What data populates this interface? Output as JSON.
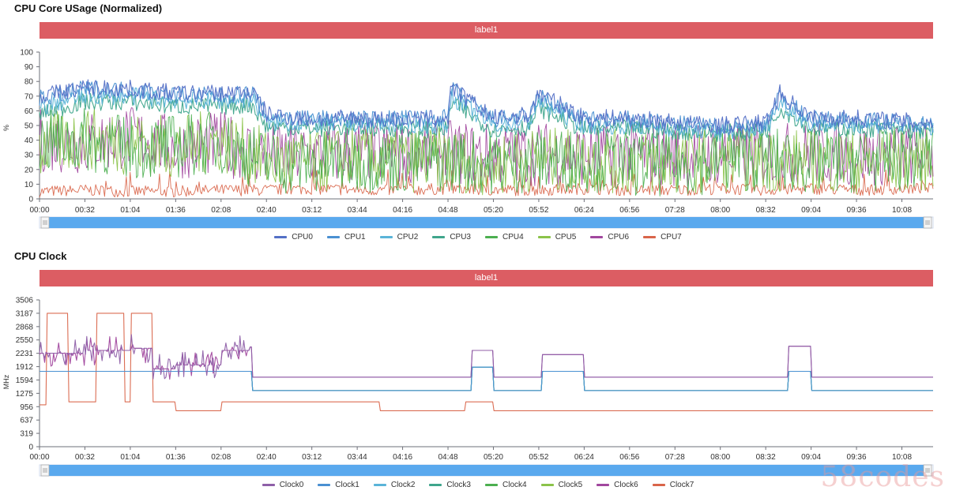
{
  "charts": [
    {
      "title": "CPU Core USage (Normalized)",
      "label_bar": "label1",
      "unit": "%",
      "y_ticks": [
        "0",
        "10",
        "20",
        "30",
        "40",
        "50",
        "60",
        "70",
        "80",
        "90",
        "100"
      ],
      "x_ticks": [
        "00:00",
        "00:32",
        "01:04",
        "01:36",
        "02:08",
        "02:40",
        "03:12",
        "03:44",
        "04:16",
        "04:48",
        "05:20",
        "05:52",
        "06:24",
        "06:56",
        "07:28",
        "08:00",
        "08:32",
        "09:04",
        "09:36",
        "10:08"
      ],
      "legend": [
        {
          "name": "CPU0",
          "color": "#5470c6"
        },
        {
          "name": "CPU1",
          "color": "#4a90d2"
        },
        {
          "name": "CPU2",
          "color": "#5ab4d8"
        },
        {
          "name": "CPU3",
          "color": "#3fa58c"
        },
        {
          "name": "CPU4",
          "color": "#4caf50"
        },
        {
          "name": "CPU5",
          "color": "#8bc34a"
        },
        {
          "name": "CPU6",
          "color": "#a1479e"
        },
        {
          "name": "CPU7",
          "color": "#d9654a"
        }
      ]
    },
    {
      "title": "CPU Clock",
      "label_bar": "label1",
      "unit": "MHz",
      "y_ticks": [
        "0",
        "319",
        "637",
        "956",
        "1275",
        "1594",
        "1912",
        "2231",
        "2550",
        "2868",
        "3187",
        "3506"
      ],
      "x_ticks": [
        "00:00",
        "00:32",
        "01:04",
        "01:36",
        "02:08",
        "02:40",
        "03:12",
        "03:44",
        "04:16",
        "04:48",
        "05:20",
        "05:52",
        "06:24",
        "06:56",
        "07:28",
        "08:00",
        "08:32",
        "09:04",
        "09:36",
        "10:08"
      ],
      "legend": [
        {
          "name": "Clock0",
          "color": "#8e5fa8"
        },
        {
          "name": "Clock1",
          "color": "#4a90d2"
        },
        {
          "name": "Clock2",
          "color": "#5ab4d8"
        },
        {
          "name": "Clock3",
          "color": "#3fa58c"
        },
        {
          "name": "Clock4",
          "color": "#4caf50"
        },
        {
          "name": "Clock5",
          "color": "#8bc34a"
        },
        {
          "name": "Clock6",
          "color": "#a1479e"
        },
        {
          "name": "Clock7",
          "color": "#d9654a"
        }
      ]
    }
  ],
  "watermark": "58codes",
  "chart_data": [
    {
      "type": "line",
      "title": "CPU Core USage (Normalized)",
      "ylabel": "%",
      "ylim": [
        0,
        100
      ],
      "x_range": [
        "00:00",
        "10:30"
      ],
      "grid": false,
      "legend_position": "bottom",
      "series": [
        {
          "name": "CPU0",
          "color": "#5470c6",
          "x": [
            "00:00",
            "00:32",
            "01:04",
            "01:36",
            "02:08",
            "02:30",
            "02:40",
            "03:12",
            "03:44",
            "04:16",
            "04:48",
            "04:50",
            "05:20",
            "05:45",
            "05:52",
            "06:24",
            "06:56",
            "07:28",
            "08:00",
            "08:32",
            "08:42",
            "09:04",
            "09:36",
            "10:08",
            "10:30"
          ],
          "values": [
            70,
            76,
            75,
            72,
            72,
            73,
            58,
            54,
            55,
            54,
            55,
            76,
            55,
            57,
            72,
            55,
            55,
            52,
            50,
            52,
            72,
            55,
            55,
            53,
            52
          ]
        },
        {
          "name": "CPU1",
          "color": "#4a90d2",
          "x": [
            "00:00",
            "00:32",
            "01:04",
            "01:36",
            "02:08",
            "02:30",
            "02:40",
            "03:12",
            "03:44",
            "04:16",
            "04:48",
            "04:50",
            "05:20",
            "05:45",
            "05:52",
            "06:24",
            "06:56",
            "07:28",
            "08:00",
            "08:32",
            "08:42",
            "09:04",
            "09:36",
            "10:08",
            "10:30"
          ],
          "values": [
            68,
            75,
            74,
            71,
            70,
            72,
            56,
            55,
            54,
            55,
            55,
            75,
            54,
            56,
            70,
            54,
            54,
            51,
            49,
            51,
            70,
            54,
            54,
            52,
            51
          ]
        },
        {
          "name": "CPU2",
          "color": "#5ab4d8",
          "x": [
            "00:00",
            "00:32",
            "01:04",
            "01:36",
            "02:08",
            "02:30",
            "02:40",
            "03:12",
            "03:44",
            "04:16",
            "04:48",
            "04:50",
            "05:20",
            "05:45",
            "05:52",
            "06:24",
            "06:56",
            "07:28",
            "08:00",
            "08:32",
            "08:42",
            "09:04",
            "09:36",
            "10:08",
            "10:30"
          ],
          "values": [
            62,
            70,
            70,
            67,
            67,
            68,
            52,
            51,
            51,
            51,
            50,
            70,
            50,
            52,
            66,
            50,
            50,
            48,
            46,
            48,
            66,
            51,
            51,
            50,
            49
          ]
        },
        {
          "name": "CPU3",
          "color": "#3fa58c",
          "x": [
            "00:00",
            "00:32",
            "01:04",
            "01:36",
            "02:08",
            "02:30",
            "02:40",
            "03:12",
            "03:44",
            "04:16",
            "04:48",
            "04:50",
            "05:20",
            "05:45",
            "05:52",
            "06:24",
            "06:56",
            "07:28",
            "08:00",
            "08:32",
            "08:42",
            "09:04",
            "09:36",
            "10:08",
            "10:30"
          ],
          "values": [
            58,
            66,
            66,
            63,
            63,
            64,
            49,
            48,
            49,
            48,
            47,
            66,
            47,
            49,
            62,
            47,
            48,
            46,
            45,
            46,
            62,
            48,
            48,
            47,
            46
          ]
        },
        {
          "name": "CPU4",
          "color": "#4caf50",
          "x": [
            "00:00",
            "00:32",
            "01:04",
            "01:36",
            "02:08",
            "02:40",
            "03:12",
            "03:44",
            "04:16",
            "04:48",
            "05:20",
            "05:52",
            "06:24",
            "06:56",
            "07:28",
            "08:00",
            "08:32",
            "09:04",
            "09:36",
            "10:08",
            "10:30"
          ],
          "values": [
            38,
            40,
            35,
            36,
            39,
            25,
            24,
            27,
            25,
            26,
            25,
            26,
            27,
            24,
            23,
            26,
            27,
            25,
            26,
            27,
            30
          ]
        },
        {
          "name": "CPU5",
          "color": "#8bc34a",
          "x": [
            "00:00",
            "00:32",
            "01:04",
            "01:36",
            "02:08",
            "02:40",
            "03:12",
            "03:44",
            "04:16",
            "04:48",
            "05:20",
            "05:52",
            "06:24",
            "06:56",
            "07:28",
            "08:00",
            "08:32",
            "09:04",
            "09:36",
            "10:08",
            "10:30"
          ],
          "values": [
            35,
            42,
            38,
            35,
            40,
            26,
            25,
            28,
            26,
            27,
            24,
            27,
            26,
            25,
            24,
            27,
            26,
            26,
            25,
            26,
            28
          ]
        },
        {
          "name": "CPU6",
          "color": "#a1479e",
          "x": [
            "00:00",
            "00:32",
            "01:04",
            "01:36",
            "02:08",
            "02:40",
            "03:12",
            "03:44",
            "04:16",
            "04:48",
            "05:20",
            "05:52",
            "06:24",
            "06:56",
            "07:28",
            "08:00",
            "08:32",
            "09:04",
            "09:36",
            "10:08",
            "10:30"
          ],
          "values": [
            40,
            38,
            42,
            35,
            38,
            30,
            30,
            32,
            31,
            32,
            30,
            31,
            30,
            31,
            30,
            31,
            30,
            31,
            30,
            31,
            30
          ]
        },
        {
          "name": "CPU7",
          "color": "#d9654a",
          "x": [
            "00:00",
            "00:32",
            "01:04",
            "01:36",
            "02:08",
            "02:40",
            "03:12",
            "03:44",
            "04:16",
            "04:48",
            "05:20",
            "05:52",
            "06:24",
            "06:56",
            "07:28",
            "08:00",
            "08:32",
            "09:04",
            "09:36",
            "10:08",
            "10:30"
          ],
          "values": [
            5,
            6,
            5,
            5,
            6,
            6,
            7,
            6,
            6,
            7,
            6,
            6,
            7,
            6,
            6,
            7,
            6,
            7,
            6,
            7,
            7
          ]
        }
      ]
    },
    {
      "type": "line",
      "title": "CPU Clock",
      "ylabel": "MHz",
      "ylim": [
        0,
        3506
      ],
      "x_range": [
        "00:00",
        "10:30"
      ],
      "grid": false,
      "legend_position": "bottom",
      "series": [
        {
          "name": "Clock0",
          "color": "#8e5fa8",
          "x": [
            "00:00",
            "00:32",
            "01:04",
            "01:20",
            "01:36",
            "02:08",
            "02:28",
            "02:30",
            "04:48",
            "05:00",
            "05:05",
            "05:20",
            "05:52",
            "05:54",
            "06:24",
            "06:56",
            "07:28",
            "08:00",
            "08:32",
            "08:43",
            "08:48",
            "09:04",
            "09:36",
            "10:08",
            "10:30"
          ],
          "values": [
            2231,
            2300,
            2350,
            1860,
            1950,
            2300,
            2380,
            1660,
            1660,
            1660,
            2300,
            1660,
            1660,
            2200,
            1660,
            1660,
            1660,
            1660,
            1660,
            1660,
            2400,
            1660,
            1660,
            1660,
            1660
          ]
        },
        {
          "name": "Clock1",
          "color": "#4a90d2",
          "x": [
            "00:00",
            "02:28",
            "02:30",
            "04:48",
            "05:00",
            "05:05",
            "05:20",
            "05:52",
            "05:54",
            "06:24",
            "08:32",
            "08:43",
            "08:48",
            "09:04",
            "10:30"
          ],
          "values": [
            1800,
            1800,
            1340,
            1340,
            1340,
            1900,
            1340,
            1340,
            1800,
            1340,
            1340,
            1340,
            1800,
            1340,
            1340
          ]
        },
        {
          "name": "Clock2",
          "color": "#5ab4d8",
          "x": [
            "00:00",
            "02:28",
            "02:30",
            "04:48",
            "05:00",
            "05:05",
            "05:20",
            "05:52",
            "05:54",
            "06:24",
            "08:32",
            "08:43",
            "08:48",
            "09:04",
            "10:30"
          ],
          "values": [
            1800,
            1800,
            1340,
            1340,
            1340,
            1900,
            1340,
            1340,
            1800,
            1340,
            1340,
            1340,
            1800,
            1340,
            1340
          ]
        },
        {
          "name": "Clock3",
          "color": "#3fa58c",
          "x": [
            "00:00",
            "02:28",
            "02:30",
            "04:48",
            "05:00",
            "05:05",
            "05:20",
            "05:52",
            "05:54",
            "06:24",
            "08:32",
            "08:43",
            "08:48",
            "09:04",
            "10:30"
          ],
          "values": [
            1800,
            1800,
            1340,
            1340,
            1340,
            1900,
            1340,
            1340,
            1800,
            1340,
            1340,
            1340,
            1800,
            1340,
            1340
          ]
        },
        {
          "name": "Clock4",
          "color": "#4caf50",
          "x": [
            "00:00",
            "02:28",
            "02:30",
            "04:48",
            "05:00",
            "05:05",
            "05:20",
            "05:52",
            "05:54",
            "06:24",
            "08:32",
            "08:43",
            "08:48",
            "09:04",
            "10:30"
          ],
          "values": [
            1800,
            1800,
            1340,
            1340,
            1340,
            1900,
            1340,
            1340,
            1800,
            1340,
            1340,
            1340,
            1800,
            1340,
            1340
          ]
        },
        {
          "name": "Clock5",
          "color": "#8bc34a",
          "x": [
            "00:00",
            "02:28",
            "02:30",
            "04:48",
            "05:00",
            "05:05",
            "05:20",
            "05:52",
            "05:54",
            "06:24",
            "08:32",
            "08:43",
            "08:48",
            "09:04",
            "10:30"
          ],
          "values": [
            1800,
            1800,
            1340,
            1340,
            1340,
            1900,
            1340,
            1340,
            1800,
            1340,
            1340,
            1340,
            1800,
            1340,
            1340
          ]
        },
        {
          "name": "Clock6",
          "color": "#a1479e",
          "x": [
            "00:00",
            "00:32",
            "01:04",
            "01:20",
            "01:36",
            "02:08",
            "02:28",
            "02:30",
            "04:48",
            "05:00",
            "05:05",
            "05:20",
            "05:52",
            "05:54",
            "06:24",
            "06:56",
            "07:28",
            "08:00",
            "08:32",
            "08:43",
            "08:48",
            "09:04",
            "09:36",
            "10:08",
            "10:30"
          ],
          "values": [
            2231,
            2300,
            2350,
            1860,
            1950,
            2300,
            2380,
            1660,
            1660,
            1660,
            2300,
            1660,
            1660,
            2200,
            1660,
            1660,
            1660,
            1660,
            1660,
            1660,
            2400,
            1660,
            1660,
            1660,
            1660
          ]
        },
        {
          "name": "Clock7",
          "color": "#d9654a",
          "x": [
            "00:00",
            "00:05",
            "00:20",
            "00:40",
            "01:00",
            "01:04",
            "01:20",
            "01:36",
            "01:55",
            "02:08",
            "03:12",
            "03:44",
            "04:00",
            "04:16",
            "04:48",
            "05:00",
            "05:20",
            "05:52",
            "06:24",
            "06:56",
            "07:28",
            "08:00",
            "08:32",
            "09:04",
            "09:36",
            "10:08",
            "10:30"
          ],
          "values": [
            1000,
            3187,
            1070,
            3187,
            1070,
            3187,
            1070,
            860,
            860,
            1070,
            1070,
            1070,
            860,
            860,
            860,
            1070,
            860,
            860,
            860,
            860,
            860,
            860,
            860,
            860,
            860,
            860,
            860
          ]
        }
      ]
    }
  ]
}
